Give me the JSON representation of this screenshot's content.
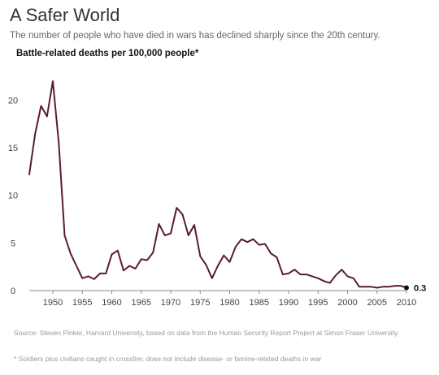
{
  "title": "A Safer World",
  "subtitle": "The number of people who have died in wars has declined sharply since the 20th century.",
  "source": "Source: Steven Pinker, Harvard University, based on data from the Human Security Report Project at Simon Fraser University.",
  "footnote": "* Soldiers plus civilians caught in crossfire; does not include disease- or famine-related deaths in war",
  "colors": {
    "line": "#5a1a3a",
    "axis": "#888888"
  },
  "chart_data": {
    "type": "line",
    "title": "Battle-related deaths per 100,000 people*",
    "xlabel": "",
    "ylabel": "",
    "xlim": [
      1946,
      2010
    ],
    "ylim": [
      0,
      22
    ],
    "x_ticks": [
      1950,
      1955,
      1960,
      1965,
      1970,
      1975,
      1980,
      1985,
      1990,
      1995,
      2000,
      2005,
      2010
    ],
    "y_ticks": [
      0,
      5,
      10,
      15,
      20
    ],
    "grid": false,
    "end_label": "0.3",
    "series": [
      {
        "x": [
          1946,
          1947,
          1948,
          1949,
          1950,
          1951,
          1952,
          1953,
          1954,
          1955,
          1956,
          1957,
          1958,
          1959,
          1960,
          1961,
          1962,
          1963,
          1964,
          1965,
          1966,
          1967,
          1968,
          1969,
          1970,
          1971,
          1972,
          1973,
          1974,
          1975,
          1976,
          1977,
          1978,
          1979,
          1980,
          1981,
          1982,
          1983,
          1984,
          1985,
          1986,
          1987,
          1988,
          1989,
          1990,
          1991,
          1992,
          1993,
          1994,
          1995,
          1996,
          1997,
          1998,
          1999,
          2000,
          2001,
          2002,
          2003,
          2004,
          2005,
          2006,
          2007,
          2008,
          2009,
          2010
        ],
        "y": [
          12.2,
          16.5,
          19.4,
          18.3,
          22.0,
          15.5,
          5.8,
          3.9,
          2.6,
          1.3,
          1.5,
          1.2,
          1.8,
          1.8,
          3.8,
          4.2,
          2.1,
          2.6,
          2.3,
          3.3,
          3.2,
          4.0,
          7.0,
          5.8,
          6.0,
          8.7,
          8.0,
          5.8,
          6.9,
          3.6,
          2.7,
          1.3,
          2.6,
          3.7,
          3.0,
          4.6,
          5.4,
          5.1,
          5.4,
          4.8,
          4.9,
          3.9,
          3.5,
          1.7,
          1.8,
          2.2,
          1.7,
          1.7,
          1.5,
          1.3,
          1.0,
          0.8,
          1.6,
          2.2,
          1.5,
          1.3,
          0.4,
          0.4,
          0.4,
          0.3,
          0.4,
          0.4,
          0.5,
          0.5,
          0.3
        ]
      }
    ]
  }
}
